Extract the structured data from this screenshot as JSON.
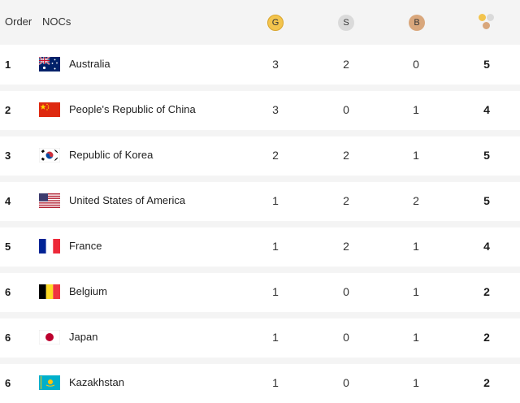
{
  "header": {
    "order_label": "Order",
    "nocs_label": "NOCs",
    "gold_label": "G",
    "silver_label": "S",
    "bronze_label": "B",
    "total_icon": "medals-total-icon"
  },
  "colors": {
    "gold": "#f3c44d",
    "silver": "#dadada",
    "bronze": "#d9a77c",
    "header_bg": "#f4f4f4"
  },
  "rows": [
    {
      "order": "1",
      "country": "Australia",
      "flag": "australia-flag-icon",
      "gold": "3",
      "silver": "2",
      "bronze": "0",
      "total": "5"
    },
    {
      "order": "2",
      "country": "People's Republic of China",
      "flag": "china-flag-icon",
      "gold": "3",
      "silver": "0",
      "bronze": "1",
      "total": "4"
    },
    {
      "order": "3",
      "country": "Republic of Korea",
      "flag": "korea-flag-icon",
      "gold": "2",
      "silver": "2",
      "bronze": "1",
      "total": "5"
    },
    {
      "order": "4",
      "country": "United States of America",
      "flag": "usa-flag-icon",
      "gold": "1",
      "silver": "2",
      "bronze": "2",
      "total": "5"
    },
    {
      "order": "5",
      "country": "France",
      "flag": "france-flag-icon",
      "gold": "1",
      "silver": "2",
      "bronze": "1",
      "total": "4"
    },
    {
      "order": "6",
      "country": "Belgium",
      "flag": "belgium-flag-icon",
      "gold": "1",
      "silver": "0",
      "bronze": "1",
      "total": "2"
    },
    {
      "order": "6",
      "country": "Japan",
      "flag": "japan-flag-icon",
      "gold": "1",
      "silver": "0",
      "bronze": "1",
      "total": "2"
    },
    {
      "order": "6",
      "country": "Kazakhstan",
      "flag": "kazakhstan-flag-icon",
      "gold": "1",
      "silver": "0",
      "bronze": "1",
      "total": "2"
    }
  ]
}
